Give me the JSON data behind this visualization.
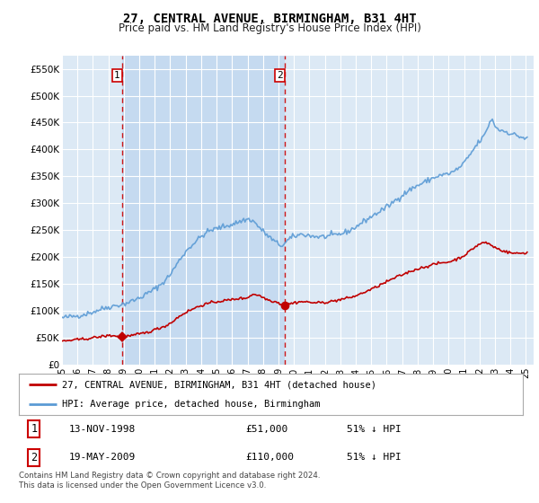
{
  "title": "27, CENTRAL AVENUE, BIRMINGHAM, B31 4HT",
  "subtitle": "Price paid vs. HM Land Registry's House Price Index (HPI)",
  "background_color": "#ffffff",
  "plot_bg_color": "#dce9f5",
  "shaded_region_color": "#c5daf0",
  "grid_color": "#ffffff",
  "hpi_color": "#5b9bd5",
  "price_color": "#c00000",
  "ylim": [
    0,
    575000
  ],
  "yticks": [
    0,
    50000,
    100000,
    150000,
    200000,
    250000,
    300000,
    350000,
    400000,
    450000,
    500000,
    550000
  ],
  "ytick_labels": [
    "£0",
    "£50K",
    "£100K",
    "£150K",
    "£200K",
    "£250K",
    "£300K",
    "£350K",
    "£400K",
    "£450K",
    "£500K",
    "£550K"
  ],
  "legend_line1": "27, CENTRAL AVENUE, BIRMINGHAM, B31 4HT (detached house)",
  "legend_line2": "HPI: Average price, detached house, Birmingham",
  "table_row1": [
    "1",
    "13-NOV-1998",
    "£51,000",
    "51% ↓ HPI"
  ],
  "table_row2": [
    "2",
    "19-MAY-2009",
    "£110,000",
    "51% ↓ HPI"
  ],
  "footnote": "Contains HM Land Registry data © Crown copyright and database right 2024.\nThis data is licensed under the Open Government Licence v3.0.",
  "purchase1_x": 1998.87,
  "purchase1_y": 51000,
  "purchase2_x": 2009.38,
  "purchase2_y": 110000,
  "vline1_x": 1998.87,
  "vline2_x": 2009.38,
  "xlim_start": 1995.0,
  "xlim_end": 2025.5
}
